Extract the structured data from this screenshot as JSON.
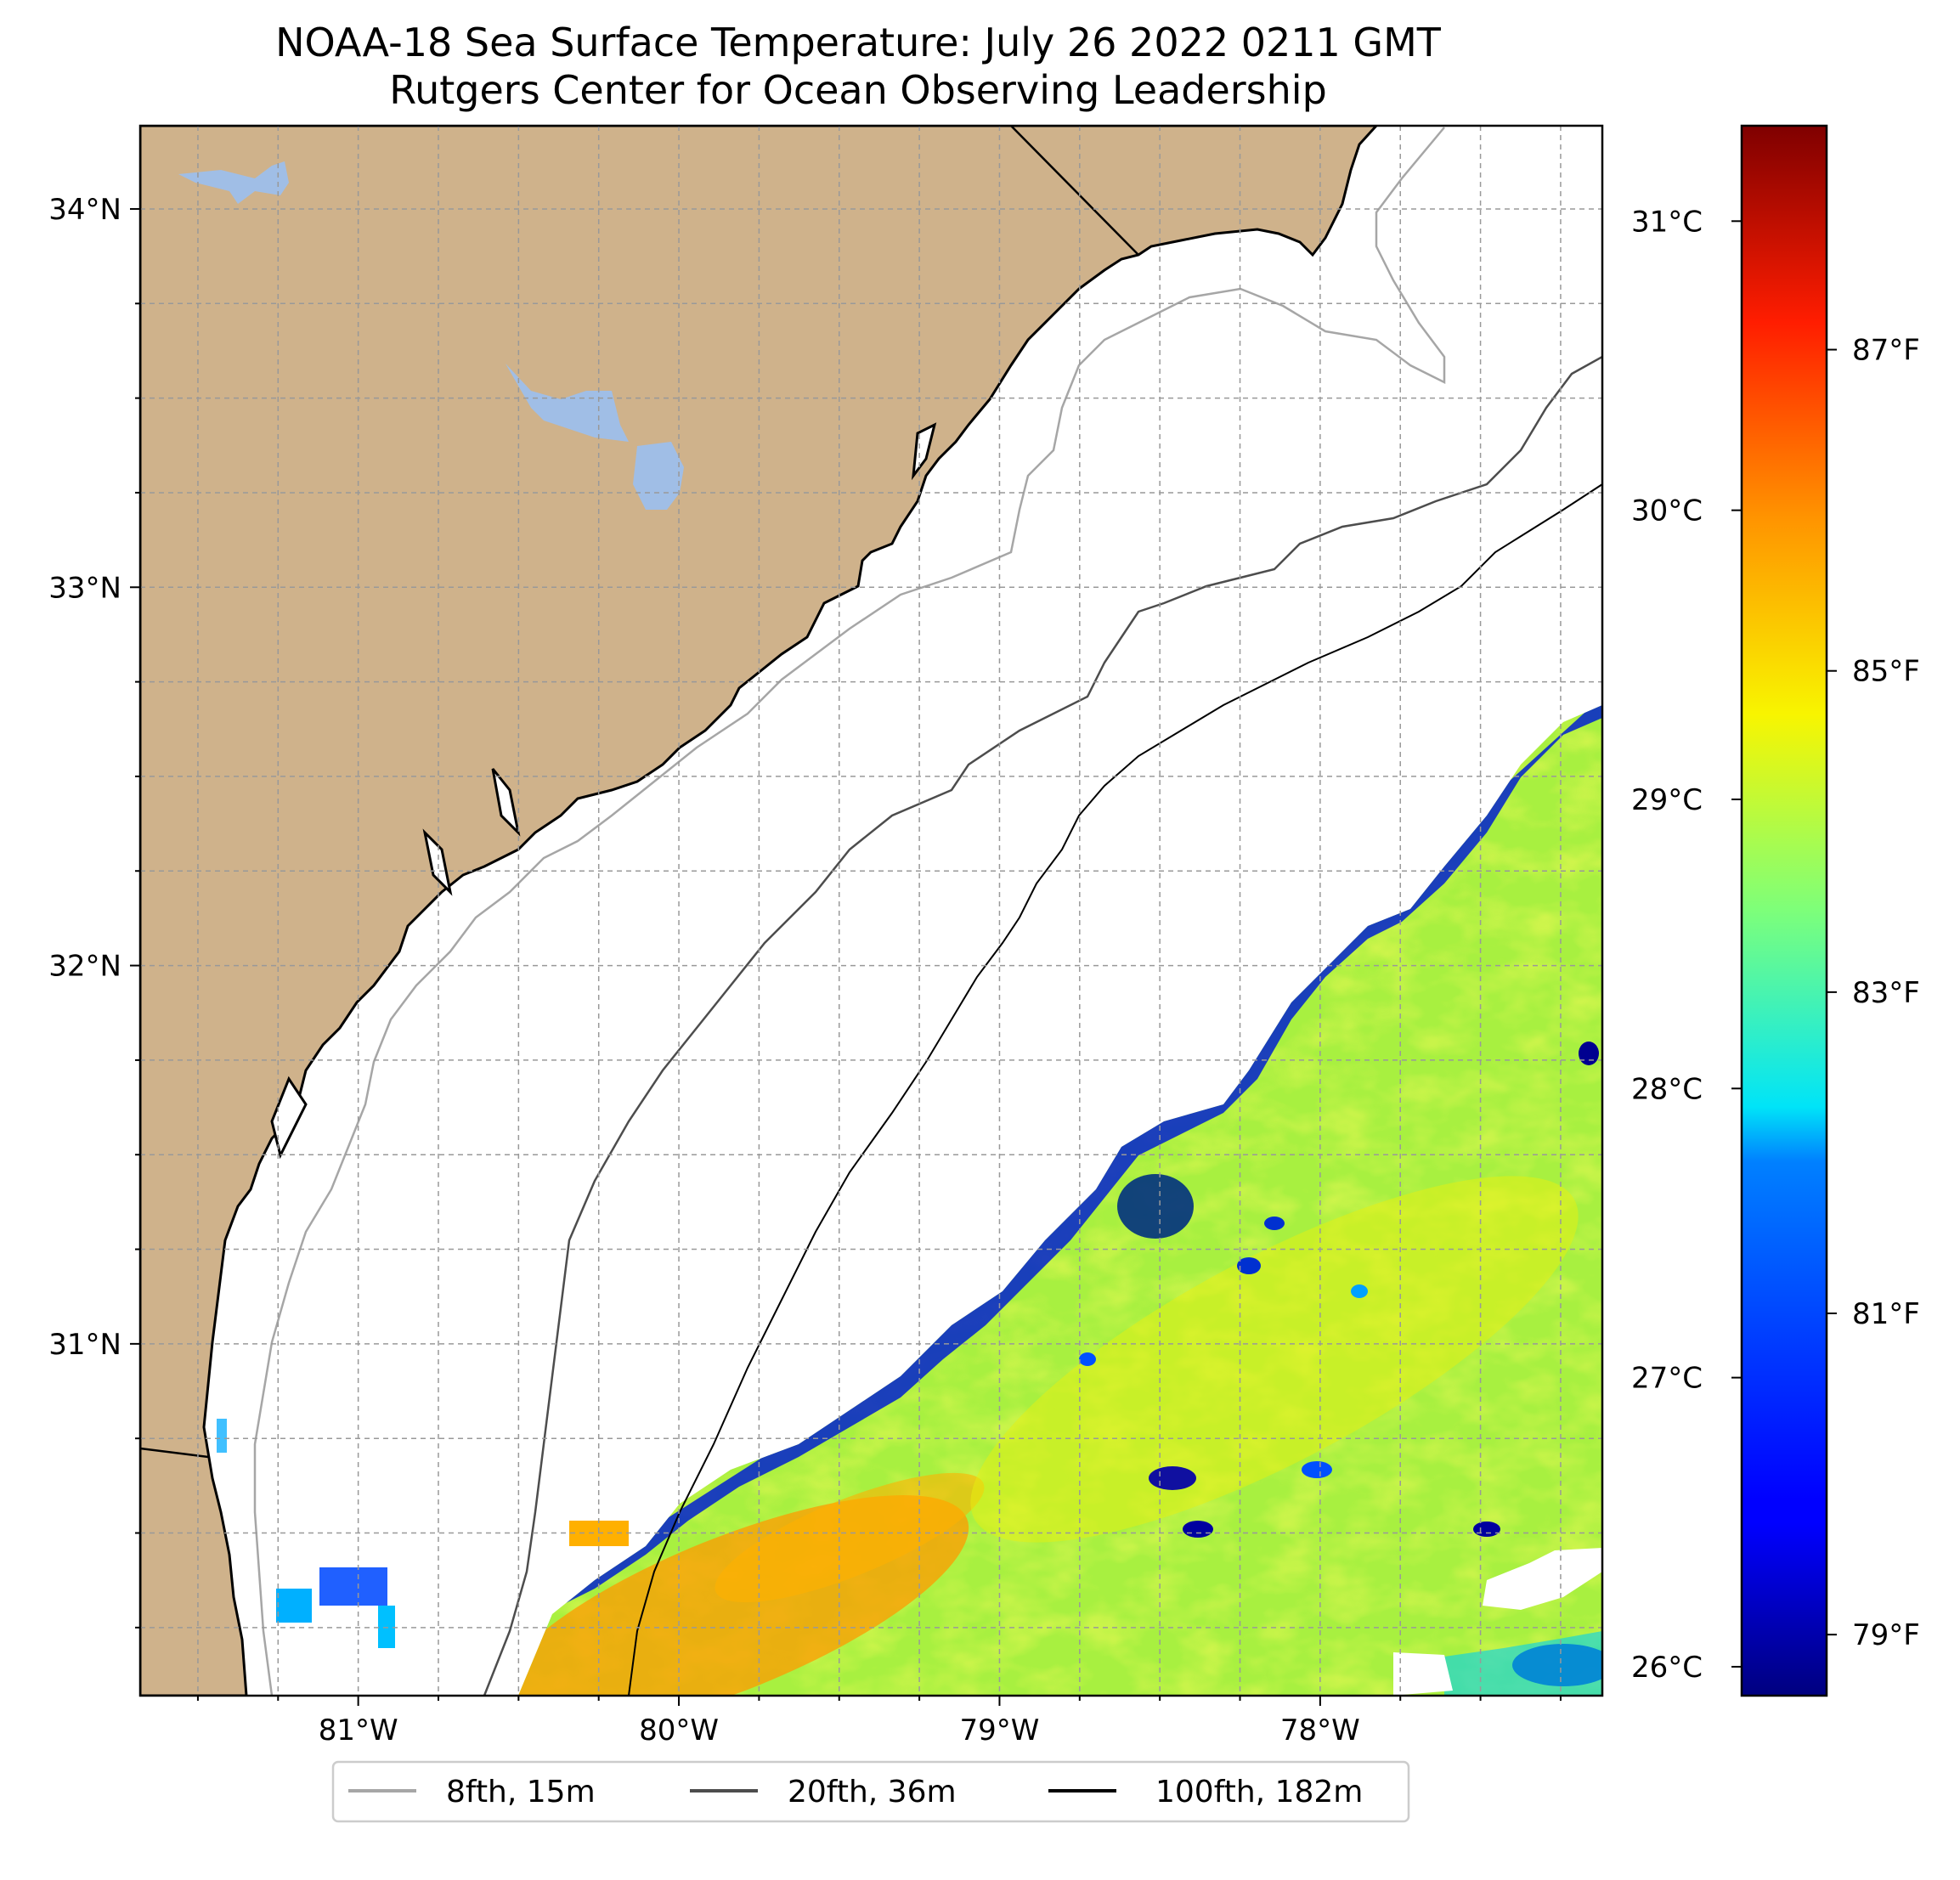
{
  "title": {
    "line1": "NOAA-18 Sea Surface Temperature: July 26 2022 0211 GMT",
    "line2": "Rutgers Center for Ocean Observing Leadership"
  },
  "map": {
    "lon_range": [
      -81.68,
      -77.12
    ],
    "lat_range": [
      30.07,
      34.22
    ],
    "lat_ticks": [
      {
        "value": 34,
        "label": "34°N"
      },
      {
        "value": 33,
        "label": "33°N"
      },
      {
        "value": 32,
        "label": "32°N"
      },
      {
        "value": 31,
        "label": "31°N"
      }
    ],
    "lon_ticks": [
      {
        "value": -81,
        "label": "81°W"
      },
      {
        "value": -80,
        "label": "80°W"
      },
      {
        "value": -79,
        "label": "79°W"
      },
      {
        "value": -78,
        "label": "78°W"
      }
    ],
    "gridlines": true,
    "colors": {
      "land": "#cfb28b",
      "lakes": "#a0bee6",
      "ocean": "#ffffff",
      "coast": "#000000"
    }
  },
  "colorbar": {
    "colormap": "jet",
    "celsius_ticks": [
      {
        "value": 31,
        "label": "31°C"
      },
      {
        "value": 30,
        "label": "30°C"
      },
      {
        "value": 29,
        "label": "29°C"
      },
      {
        "value": 28,
        "label": "28°C"
      },
      {
        "value": 27,
        "label": "27°C"
      },
      {
        "value": 26,
        "label": "26°C"
      }
    ],
    "fahrenheit_ticks": [
      {
        "value": 87,
        "label": "87°F"
      },
      {
        "value": 85,
        "label": "85°F"
      },
      {
        "value": 83,
        "label": "83°F"
      },
      {
        "value": 81,
        "label": "81°F"
      },
      {
        "value": 79,
        "label": "79°F"
      }
    ]
  },
  "legend": {
    "placement": "bottom-center",
    "items": [
      {
        "label": "8fth, 15m",
        "color": "#a6a6a6"
      },
      {
        "label": "20fth, 36m",
        "color": "#4d4d4d"
      },
      {
        "label": "100fth, 182m",
        "color": "#000000"
      }
    ]
  }
}
